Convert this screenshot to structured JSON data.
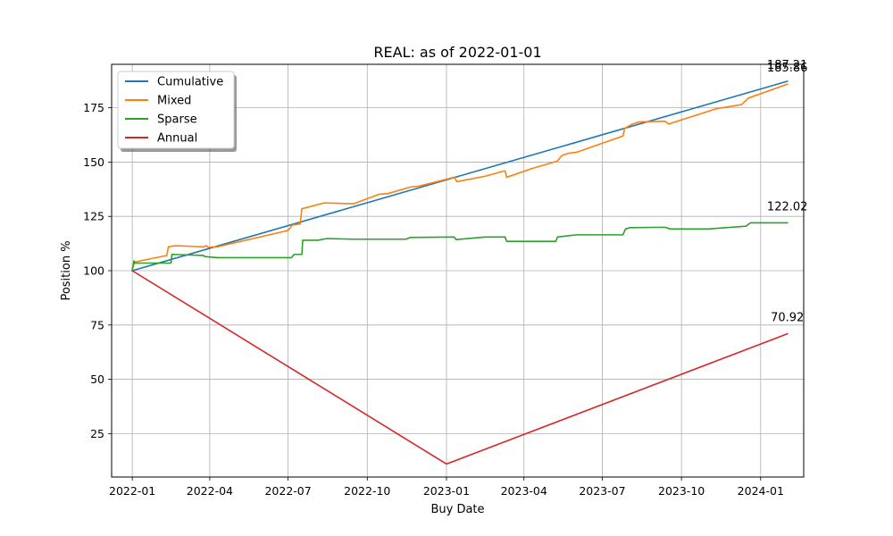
{
  "chart_data": {
    "type": "line",
    "title": "REAL: as of 2022-01-01",
    "xlabel": "Buy Date",
    "ylabel": "Position %",
    "xlim": [
      "2021-12-08",
      "2024-02-20"
    ],
    "ylim": [
      5,
      195
    ],
    "grid": true,
    "legend_position": "top-left",
    "x_ticks": [
      "2022-01",
      "2022-04",
      "2022-07",
      "2022-10",
      "2023-01",
      "2023-04",
      "2023-07",
      "2023-10",
      "2024-01"
    ],
    "y_ticks": [
      25,
      50,
      75,
      100,
      125,
      150,
      175
    ],
    "series": [
      {
        "name": "Cumulative",
        "color": "#1f77b4",
        "end_label": "187.21",
        "points": [
          [
            "2022-01-01",
            100
          ],
          [
            "2024-02-01",
            187.21
          ]
        ]
      },
      {
        "name": "Mixed",
        "color": "#ff7f0e",
        "end_label": "185.86",
        "points": [
          [
            "2022-01-01",
            101
          ],
          [
            "2022-01-03",
            103
          ],
          [
            "2022-01-04",
            104
          ],
          [
            "2022-02-10",
            107
          ],
          [
            "2022-02-12",
            111
          ],
          [
            "2022-02-20",
            111.5
          ],
          [
            "2022-03-25",
            111
          ],
          [
            "2022-03-28",
            111.5
          ],
          [
            "2022-03-30",
            110.8
          ],
          [
            "2022-04-10",
            111
          ],
          [
            "2022-07-01",
            118.5
          ],
          [
            "2022-07-06",
            121
          ],
          [
            "2022-07-15",
            121.5
          ],
          [
            "2022-07-17",
            128.5
          ],
          [
            "2022-08-12",
            131.2
          ],
          [
            "2022-09-15",
            130.8
          ],
          [
            "2022-10-15",
            135.2
          ],
          [
            "2022-10-25",
            135.5
          ],
          [
            "2022-11-20",
            138.5
          ],
          [
            "2022-12-01",
            139
          ],
          [
            "2023-01-10",
            143
          ],
          [
            "2023-01-13",
            141
          ],
          [
            "2023-02-15",
            143.5
          ],
          [
            "2023-03-10",
            146
          ],
          [
            "2023-03-12",
            143
          ],
          [
            "2023-04-10",
            147
          ],
          [
            "2023-05-10",
            150.5
          ],
          [
            "2023-05-15",
            153
          ],
          [
            "2023-05-22",
            154
          ],
          [
            "2023-06-01",
            154.5
          ],
          [
            "2023-07-25",
            162
          ],
          [
            "2023-07-27",
            165.5
          ],
          [
            "2023-08-05",
            167.5
          ],
          [
            "2023-08-13",
            168.5
          ],
          [
            "2023-09-12",
            168.8
          ],
          [
            "2023-09-16",
            167.5
          ],
          [
            "2023-11-10",
            174.5
          ],
          [
            "2023-12-10",
            176.5
          ],
          [
            "2023-12-18",
            179.5
          ],
          [
            "2024-02-01",
            185.86
          ]
        ]
      },
      {
        "name": "Sparse",
        "color": "#2ca02c",
        "end_label": "122.02",
        "points": [
          [
            "2022-01-01",
            100
          ],
          [
            "2022-01-03",
            104.5
          ],
          [
            "2022-01-04",
            103.5
          ],
          [
            "2022-02-15",
            103.5
          ],
          [
            "2022-02-16",
            107.5
          ],
          [
            "2022-03-25",
            107
          ],
          [
            "2022-03-26",
            106.5
          ],
          [
            "2022-04-10",
            106
          ],
          [
            "2022-07-05",
            106
          ],
          [
            "2022-07-08",
            107.5
          ],
          [
            "2022-07-17",
            107.5
          ],
          [
            "2022-07-18",
            114
          ],
          [
            "2022-08-05",
            114
          ],
          [
            "2022-08-15",
            114.8
          ],
          [
            "2022-09-15",
            114.5
          ],
          [
            "2022-11-15",
            114.5
          ],
          [
            "2022-11-20",
            115.3
          ],
          [
            "2023-01-10",
            115.5
          ],
          [
            "2023-01-12",
            114.3
          ],
          [
            "2023-02-15",
            115.5
          ],
          [
            "2023-03-10",
            115.5
          ],
          [
            "2023-03-12",
            113.5
          ],
          [
            "2023-05-08",
            113.5
          ],
          [
            "2023-05-10",
            115.5
          ],
          [
            "2023-06-01",
            116.5
          ],
          [
            "2023-07-25",
            116.5
          ],
          [
            "2023-07-28",
            119.2
          ],
          [
            "2023-08-02",
            119.8
          ],
          [
            "2023-09-12",
            120
          ],
          [
            "2023-09-18",
            119.2
          ],
          [
            "2023-11-01",
            119.2
          ],
          [
            "2023-12-15",
            120.5
          ],
          [
            "2023-12-20",
            122.02
          ],
          [
            "2024-02-01",
            122.02
          ]
        ]
      },
      {
        "name": "Annual",
        "color": "#d62728",
        "end_label": "70.92",
        "points": [
          [
            "2022-01-01",
            100
          ],
          [
            "2023-01-01",
            11
          ],
          [
            "2024-02-01",
            70.92
          ]
        ]
      }
    ]
  }
}
